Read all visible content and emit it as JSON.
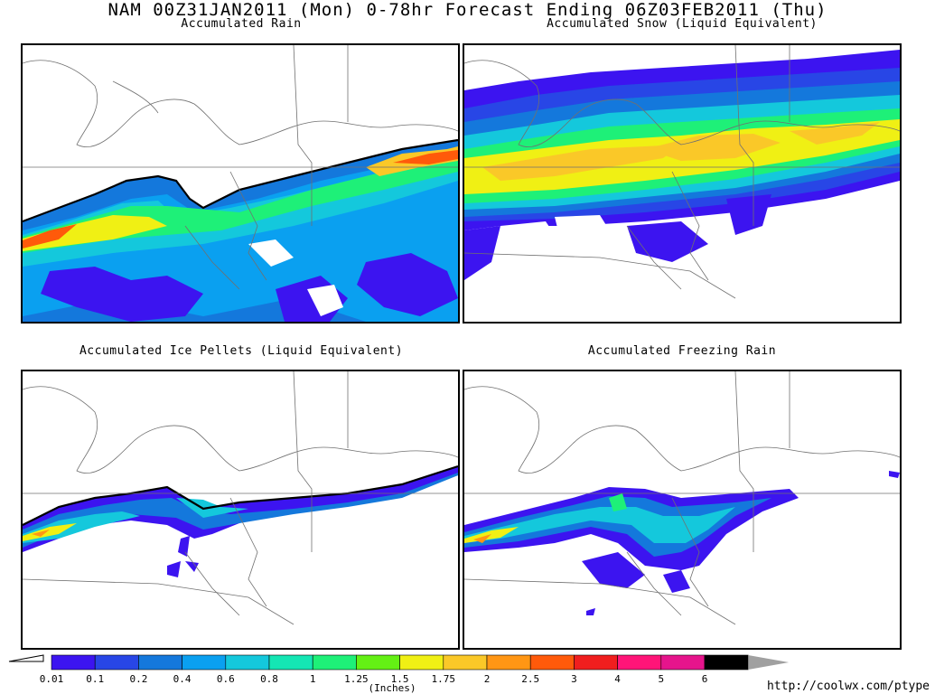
{
  "title": "NAM 00Z31JAN2011 (Mon) 0-78hr Forecast Ending 06Z03FEB2011 (Thu)",
  "panels": {
    "rain": {
      "title": "Accumulated Rain"
    },
    "snow": {
      "title": "Accumulated Snow (Liquid Equivalent)"
    },
    "ice": {
      "title": "Accumulated Ice Pellets (Liquid Equivalent)"
    },
    "freezing": {
      "title": "Accumulated Freezing Rain"
    }
  },
  "colorbar": {
    "labels": [
      "0.01",
      "0.1",
      "0.2",
      "0.4",
      "0.6",
      "0.8",
      "1",
      "1.25",
      "1.5",
      "1.75",
      "2",
      "2.5",
      "3",
      "4",
      "5",
      "6"
    ],
    "colors": [
      "#3c14f0",
      "#2846e6",
      "#1478dc",
      "#0aa0f0",
      "#14c8dc",
      "#14e6b4",
      "#1ef078",
      "#64f014",
      "#f0f014",
      "#fac828",
      "#ff9614",
      "#ff5a0a",
      "#f01e1e",
      "#ff1478",
      "#e6148c",
      "#000000"
    ],
    "units": "(Inches)"
  },
  "source_url": "http://coolwx.com/ptype"
}
